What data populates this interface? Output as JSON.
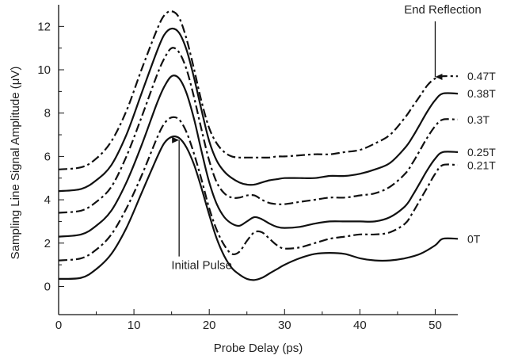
{
  "chart_data": {
    "type": "line",
    "title": "",
    "xlabel": "Probe Delay (ps)",
    "ylabel": "Sampling Line Signal Amplitude (μV)",
    "xlim": [
      0,
      53
    ],
    "ylim": [
      -1.3,
      13
    ],
    "xticks": [
      0,
      10,
      20,
      30,
      40,
      50
    ],
    "yticks": [
      0,
      2,
      4,
      6,
      8,
      10,
      12
    ],
    "grid": false,
    "legend": "right, inline at curve ends",
    "annotations": [
      {
        "text": "End Reflection",
        "x": 50,
        "y": 9.6,
        "text_x": 51,
        "text_y": 12.6
      },
      {
        "text": "Initial Pulse",
        "x": 16,
        "y": 6.9,
        "text_x": 19,
        "text_y": 0.8
      }
    ],
    "series": [
      {
        "name": "0T",
        "style": "solid",
        "x": [
          0,
          3,
          5,
          7,
          9,
          11,
          13,
          14,
          15,
          16,
          17,
          18,
          19,
          20,
          21,
          22,
          23,
          24,
          25,
          26,
          27,
          28,
          29,
          30,
          32,
          34,
          36,
          38,
          40,
          42,
          44,
          46,
          48,
          50,
          51,
          56
        ],
        "y": [
          0.35,
          0.4,
          0.8,
          1.5,
          2.7,
          4.3,
          5.9,
          6.6,
          6.9,
          6.85,
          6.4,
          5.6,
          4.5,
          3.3,
          2.2,
          1.4,
          0.85,
          0.55,
          0.35,
          0.3,
          0.4,
          0.6,
          0.8,
          1.0,
          1.3,
          1.5,
          1.55,
          1.5,
          1.3,
          1.2,
          1.2,
          1.3,
          1.5,
          1.9,
          2.2,
          2.2
        ]
      },
      {
        "name": "0.21T",
        "style": "dashdot",
        "x": [
          0,
          3,
          5,
          7,
          9,
          11,
          13,
          14,
          15,
          16,
          17,
          18,
          19,
          20,
          21,
          22,
          23,
          24,
          25,
          26,
          27,
          28,
          29,
          30,
          32,
          34,
          36,
          38,
          40,
          42,
          44,
          46,
          47,
          48,
          49,
          50,
          51,
          56
        ],
        "y": [
          1.2,
          1.3,
          1.7,
          2.4,
          3.6,
          5.1,
          6.8,
          7.5,
          7.8,
          7.7,
          7.1,
          6.1,
          4.9,
          3.6,
          2.6,
          1.9,
          1.5,
          1.6,
          2.1,
          2.5,
          2.5,
          2.2,
          1.9,
          1.75,
          1.8,
          2.0,
          2.2,
          2.3,
          2.4,
          2.4,
          2.5,
          2.9,
          3.4,
          4.0,
          4.6,
          5.2,
          5.6,
          5.6
        ]
      },
      {
        "name": "0.25T",
        "style": "solid",
        "x": [
          0,
          3,
          5,
          7,
          9,
          11,
          13,
          14,
          15,
          16,
          17,
          18,
          19,
          20,
          21,
          22,
          23,
          24,
          25,
          26,
          27,
          28,
          29,
          30,
          32,
          34,
          36,
          38,
          40,
          42,
          44,
          46,
          47,
          48,
          49,
          50,
          51,
          56
        ],
        "y": [
          2.3,
          2.4,
          2.8,
          3.5,
          4.8,
          6.5,
          8.4,
          9.2,
          9.7,
          9.6,
          8.9,
          7.7,
          6.2,
          4.8,
          3.8,
          3.2,
          2.9,
          2.8,
          3.0,
          3.2,
          3.1,
          2.9,
          2.75,
          2.7,
          2.75,
          2.9,
          3.0,
          3.0,
          3.0,
          3.0,
          3.2,
          3.7,
          4.2,
          4.8,
          5.4,
          5.9,
          6.2,
          6.2
        ]
      },
      {
        "name": "0.3T",
        "style": "dashdot",
        "x": [
          0,
          3,
          5,
          7,
          9,
          11,
          13,
          14,
          15,
          16,
          17,
          18,
          19,
          20,
          21,
          22,
          23,
          24,
          25,
          26,
          27,
          28,
          29,
          30,
          32,
          34,
          36,
          38,
          40,
          42,
          44,
          46,
          47,
          48,
          49,
          50,
          51,
          56
        ],
        "y": [
          3.4,
          3.5,
          3.9,
          4.6,
          6.0,
          7.8,
          9.7,
          10.5,
          11.0,
          10.8,
          10.0,
          8.7,
          7.2,
          5.8,
          4.8,
          4.3,
          4.1,
          4.1,
          4.2,
          4.2,
          4.0,
          3.85,
          3.8,
          3.8,
          3.9,
          4.0,
          4.1,
          4.1,
          4.2,
          4.3,
          4.6,
          5.2,
          5.7,
          6.3,
          6.9,
          7.4,
          7.7,
          7.7
        ]
      },
      {
        "name": "0.38T",
        "style": "solid",
        "x": [
          0,
          3,
          5,
          7,
          9,
          11,
          13,
          14,
          15,
          16,
          17,
          18,
          19,
          20,
          21,
          22,
          23,
          24,
          25,
          26,
          27,
          28,
          29,
          30,
          32,
          34,
          36,
          38,
          40,
          42,
          44,
          46,
          47,
          48,
          49,
          50,
          51,
          56
        ],
        "y": [
          4.4,
          4.5,
          4.9,
          5.6,
          7.0,
          8.9,
          10.8,
          11.6,
          11.9,
          11.7,
          10.9,
          9.6,
          8.1,
          6.7,
          5.8,
          5.3,
          5.0,
          4.8,
          4.7,
          4.7,
          4.8,
          4.9,
          4.95,
          5.0,
          5.0,
          5.0,
          5.1,
          5.1,
          5.2,
          5.4,
          5.7,
          6.4,
          6.9,
          7.5,
          8.1,
          8.6,
          8.9,
          8.9
        ]
      },
      {
        "name": "0.47T",
        "style": "dashdot",
        "x": [
          0,
          3,
          5,
          7,
          9,
          11,
          13,
          14,
          15,
          16,
          17,
          18,
          19,
          20,
          21,
          22,
          23,
          24,
          25,
          26,
          27,
          28,
          29,
          30,
          32,
          34,
          36,
          38,
          40,
          42,
          44,
          46,
          47,
          48,
          49,
          50,
          51,
          56
        ],
        "y": [
          5.4,
          5.5,
          5.9,
          6.7,
          8.1,
          10.0,
          11.8,
          12.5,
          12.7,
          12.4,
          11.4,
          10.0,
          8.5,
          7.3,
          6.6,
          6.2,
          6.0,
          5.95,
          5.95,
          5.95,
          5.95,
          5.95,
          6.0,
          6.0,
          6.05,
          6.1,
          6.1,
          6.2,
          6.3,
          6.6,
          7.0,
          7.8,
          8.3,
          8.8,
          9.3,
          9.6,
          9.7,
          9.7
        ]
      }
    ]
  }
}
